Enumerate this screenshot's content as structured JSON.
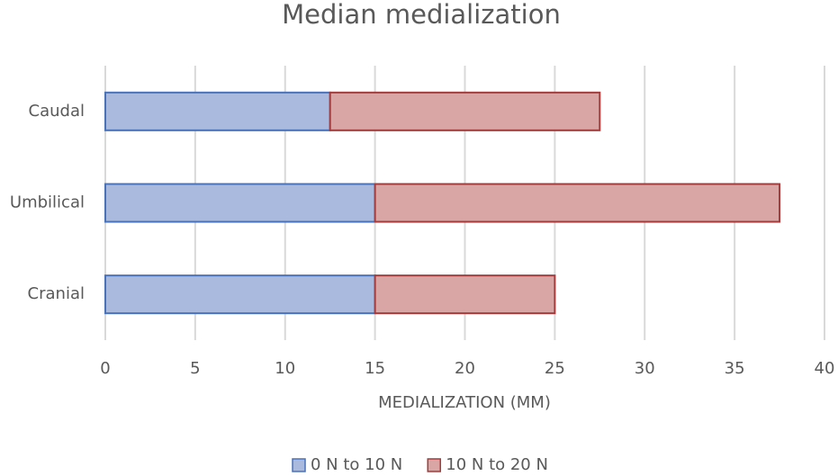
{
  "chart_data": {
    "type": "stacked-horizontal-bar",
    "title": "Median medialization",
    "x_label": "MEDIALIZATION (MM)",
    "categories": [
      "Caudal",
      "Umbilical",
      "Cranial"
    ],
    "series": [
      {
        "name": "0 N to 10 N",
        "color": "#a9bade",
        "stroke": "#4a72b8",
        "values": [
          12.5,
          15,
          15
        ]
      },
      {
        "name": "10 N to 20 N",
        "color": "#d9a5a5",
        "stroke": "#a33c3c",
        "values": [
          15,
          22.5,
          10
        ]
      }
    ],
    "xlim": [
      0,
      40
    ],
    "xticks": [
      0,
      5,
      10,
      15,
      20,
      25,
      30,
      35,
      40
    ],
    "grid": true,
    "legend": "bottom"
  }
}
